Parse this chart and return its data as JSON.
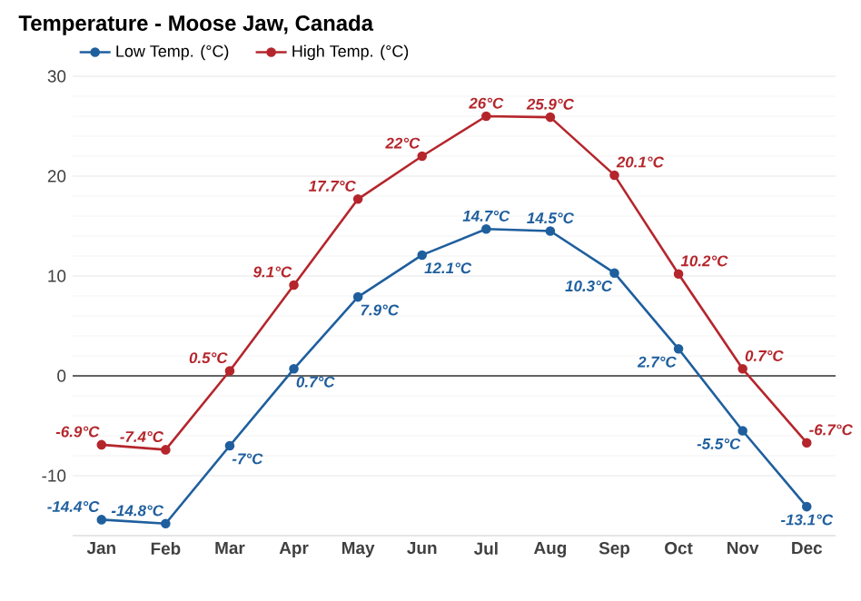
{
  "chart_data": {
    "type": "line",
    "title": "Temperature - Moose Jaw, Canada",
    "categories": [
      "Jan",
      "Feb",
      "Mar",
      "Apr",
      "May",
      "Jun",
      "Jul",
      "Aug",
      "Sep",
      "Oct",
      "Nov",
      "Dec"
    ],
    "series": [
      {
        "name": "Low Temp. (°C)",
        "color": "#1f5f9e",
        "values": [
          -14.4,
          -14.8,
          -7,
          0.7,
          7.9,
          12.1,
          14.7,
          14.5,
          10.3,
          2.7,
          -5.5,
          -13.1
        ],
        "value_labels": [
          "-14.4°C",
          "-14.8°C",
          "-7°C",
          "0.7°C",
          "7.9°C",
          "12.1°C",
          "14.7°C",
          "14.5°C",
          "10.3°C",
          "2.7°C",
          "-5.5°C",
          "-13.1°C"
        ]
      },
      {
        "name": "High Temp. (°C)",
        "color": "#b5262c",
        "values": [
          -6.9,
          -7.4,
          0.5,
          9.1,
          17.7,
          22,
          26,
          25.9,
          20.1,
          10.2,
          0.7,
          -6.7
        ],
        "value_labels": [
          "-6.9°C",
          "-7.4°C",
          "0.5°C",
          "9.1°C",
          "17.7°C",
          "22°C",
          "26°C",
          "25.9°C",
          "20.1°C",
          "10.2°C",
          "0.7°C",
          "-6.7°C"
        ]
      }
    ],
    "ylim": [
      -16,
      30
    ],
    "yticks": [
      -10,
      0,
      10,
      20,
      30
    ],
    "ref_lines": [
      {
        "axis": "y",
        "value": 0,
        "color": "#333333"
      }
    ],
    "grid": "y",
    "legend": "top left",
    "marker": "circle",
    "line_style": "solid"
  }
}
